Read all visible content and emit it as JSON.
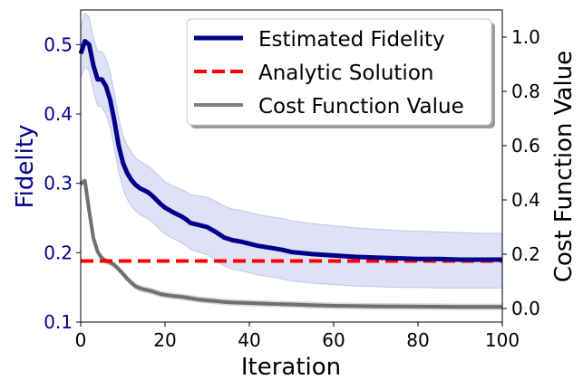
{
  "chart_data": {
    "type": "line",
    "xlabel": "Iteration",
    "ylabel_left": "Fidelity",
    "ylabel_right": "Cost Function Value",
    "xlim": [
      0,
      100
    ],
    "ylim_left": [
      0.1,
      0.55
    ],
    "ylim_right": [
      -0.05,
      1.1
    ],
    "x_ticks": [
      "0",
      "20",
      "40",
      "60",
      "80",
      "100"
    ],
    "y_left_ticks": [
      "0.1",
      "0.2",
      "0.3",
      "0.4",
      "0.5"
    ],
    "y_right_ticks": [
      "0.0",
      "0.2",
      "0.4",
      "0.6",
      "0.8",
      "1.0"
    ],
    "legend_position": "top-right",
    "colors": {
      "fidelity": "#00008b",
      "band": "#c8c8ec",
      "analytic": "#ff0000",
      "cost": "#707070",
      "left_axis_text": "#00008b",
      "right_axis_text": "#000000"
    },
    "series": [
      {
        "name": "Estimated Fidelity",
        "axis": "left",
        "style": "solid",
        "x": [
          0,
          1,
          2,
          3,
          4,
          5,
          6,
          7,
          8,
          9,
          10,
          11,
          12,
          13,
          14,
          15,
          16,
          17,
          18,
          19,
          20,
          22,
          24,
          25,
          26,
          28,
          30,
          32,
          34,
          36,
          38,
          40,
          42,
          44,
          46,
          48,
          50,
          55,
          60,
          65,
          70,
          75,
          80,
          85,
          90,
          95,
          100
        ],
        "values": [
          0.487,
          0.505,
          0.5,
          0.47,
          0.45,
          0.45,
          0.44,
          0.42,
          0.39,
          0.355,
          0.33,
          0.315,
          0.305,
          0.298,
          0.293,
          0.29,
          0.287,
          0.282,
          0.276,
          0.27,
          0.265,
          0.258,
          0.252,
          0.248,
          0.243,
          0.24,
          0.237,
          0.23,
          0.222,
          0.218,
          0.216,
          0.213,
          0.21,
          0.208,
          0.206,
          0.204,
          0.201,
          0.198,
          0.196,
          0.194,
          0.193,
          0.192,
          0.191,
          0.191,
          0.19,
          0.19,
          0.19
        ],
        "upper": [
          0.525,
          0.545,
          0.54,
          0.51,
          0.49,
          0.49,
          0.48,
          0.46,
          0.43,
          0.395,
          0.37,
          0.355,
          0.345,
          0.337,
          0.332,
          0.328,
          0.325,
          0.32,
          0.314,
          0.308,
          0.302,
          0.296,
          0.291,
          0.288,
          0.284,
          0.282,
          0.28,
          0.274,
          0.267,
          0.263,
          0.261,
          0.258,
          0.255,
          0.253,
          0.251,
          0.249,
          0.246,
          0.242,
          0.239,
          0.236,
          0.234,
          0.232,
          0.231,
          0.23,
          0.229,
          0.228,
          0.228
        ],
        "lower": [
          0.452,
          0.468,
          0.462,
          0.432,
          0.412,
          0.41,
          0.4,
          0.38,
          0.35,
          0.318,
          0.293,
          0.277,
          0.267,
          0.26,
          0.255,
          0.252,
          0.249,
          0.244,
          0.238,
          0.232,
          0.227,
          0.22,
          0.214,
          0.21,
          0.205,
          0.201,
          0.197,
          0.189,
          0.181,
          0.176,
          0.174,
          0.171,
          0.168,
          0.166,
          0.164,
          0.162,
          0.159,
          0.156,
          0.154,
          0.152,
          0.151,
          0.15,
          0.15,
          0.149,
          0.149,
          0.149,
          0.149
        ]
      },
      {
        "name": "Analytic Solution",
        "axis": "left",
        "style": "dashed",
        "x": [
          0,
          100
        ],
        "values": [
          0.188,
          0.188
        ]
      },
      {
        "name": "Cost Function Value",
        "axis": "right",
        "style": "solid",
        "x": [
          0,
          1,
          2,
          3,
          4,
          5,
          6,
          7,
          8,
          9,
          10,
          11,
          12,
          13,
          14,
          15,
          16,
          17,
          18,
          19,
          20,
          22,
          24,
          26,
          28,
          30,
          32,
          34,
          36,
          40,
          45,
          50,
          55,
          60,
          70,
          80,
          90,
          100
        ],
        "values": [
          0.46,
          0.47,
          0.36,
          0.26,
          0.21,
          0.185,
          0.175,
          0.17,
          0.16,
          0.145,
          0.128,
          0.11,
          0.095,
          0.082,
          0.075,
          0.07,
          0.067,
          0.063,
          0.058,
          0.053,
          0.05,
          0.046,
          0.043,
          0.038,
          0.033,
          0.03,
          0.027,
          0.024,
          0.022,
          0.02,
          0.017,
          0.015,
          0.012,
          0.01,
          0.008,
          0.007,
          0.006,
          0.006
        ]
      }
    ]
  }
}
